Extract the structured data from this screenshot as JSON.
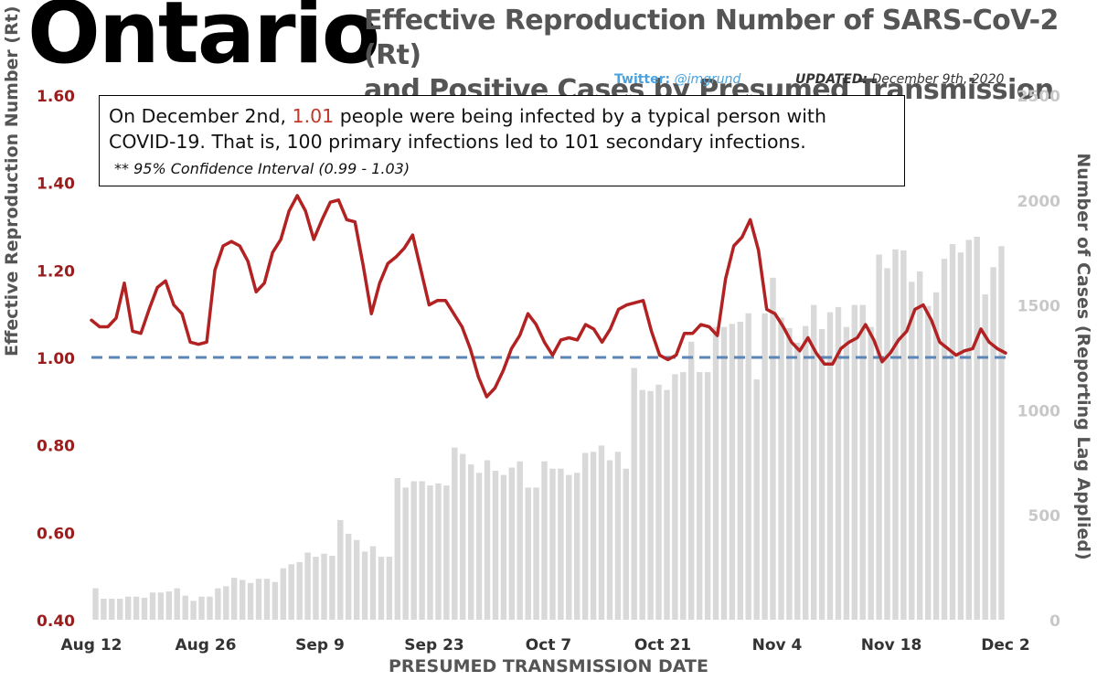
{
  "header": {
    "region": "Ontario",
    "title_line1": "Effective Reproduction Number of SARS-CoV-2 (Rt)",
    "title_line2": "and Positive Cases by Presumed Transmission Date",
    "twitter_label": "Twitter:",
    "twitter_handle": "@imgrund",
    "updated_label": "UPDATED:",
    "updated_date": "December 9th, 2020"
  },
  "annotation": {
    "text_before": "On December 2nd, ",
    "highlight": "1.01",
    "text_after": " people were being infected by a typical person with COVID-19. That is, 100 primary infections led to 101 secondary infections.",
    "ci": "** 95% Confidence Interval (0.99 - 1.03)"
  },
  "colors": {
    "rt_line": "#b22222",
    "reference_line": "#5b85b5",
    "bars": "#d9d9d9",
    "left_axis_text": "#9b1c1c",
    "right_axis_text": "#c8c8c8",
    "highlight": "#c0392b"
  },
  "chart_data": {
    "type": "bar+line",
    "xlabel": "PRESUMED TRANSMISSION DATE",
    "ylabel_left": "Effective Reproduction Number (Rt)",
    "ylabel_right": "Number of Cases (Reporting Lag Applied)",
    "ylim_left": [
      0.4,
      1.6
    ],
    "ylim_right": [
      0,
      2500
    ],
    "left_ticks": [
      "1.60",
      "1.40",
      "1.20",
      "1.00",
      "0.80",
      "0.60",
      "0.40"
    ],
    "right_ticks": [
      "2500",
      "2000",
      "1500",
      "1000",
      "500",
      "0"
    ],
    "x_ticks": [
      "Aug 12",
      "Aug 26",
      "Sep 9",
      "Sep 23",
      "Oct 7",
      "Oct 21",
      "Nov 4",
      "Nov 18",
      "Dec 2"
    ],
    "reference_line": 1.0,
    "series": [
      {
        "name": "Positive Cases",
        "kind": "bar",
        "values": [
          150,
          100,
          100,
          100,
          110,
          110,
          105,
          130,
          130,
          135,
          150,
          115,
          90,
          110,
          110,
          150,
          160,
          200,
          190,
          175,
          195,
          195,
          180,
          245,
          265,
          275,
          320,
          300,
          315,
          305,
          475,
          410,
          380,
          325,
          350,
          300,
          300,
          675,
          630,
          660,
          660,
          640,
          650,
          640,
          820,
          790,
          740,
          700,
          760,
          710,
          690,
          725,
          755,
          630,
          630,
          755,
          720,
          720,
          690,
          700,
          795,
          800,
          830,
          760,
          800,
          720,
          1200,
          1095,
          1090,
          1120,
          1095,
          1170,
          1180,
          1325,
          1180,
          1180,
          1395,
          1395,
          1410,
          1420,
          1460,
          1145,
          1460,
          1630,
          1440,
          1390,
          1320,
          1400,
          1500,
          1385,
          1465,
          1490,
          1395,
          1500,
          1500,
          1395,
          1740,
          1675,
          1765,
          1760,
          1610,
          1660,
          1495,
          1560,
          1720,
          1790,
          1750,
          1810,
          1825,
          1550,
          1680,
          1780
        ]
      },
      {
        "name": "Rt",
        "kind": "line",
        "values": [
          1.085,
          1.07,
          1.07,
          1.09,
          1.17,
          1.06,
          1.055,
          1.11,
          1.16,
          1.175,
          1.12,
          1.1,
          1.035,
          1.03,
          1.035,
          1.2,
          1.255,
          1.265,
          1.255,
          1.22,
          1.15,
          1.17,
          1.24,
          1.27,
          1.335,
          1.37,
          1.335,
          1.27,
          1.315,
          1.355,
          1.36,
          1.315,
          1.31,
          1.21,
          1.1,
          1.17,
          1.215,
          1.23,
          1.25,
          1.28,
          1.2,
          1.12,
          1.13,
          1.13,
          1.1,
          1.07,
          1.02,
          0.955,
          0.91,
          0.93,
          0.97,
          1.02,
          1.05,
          1.1,
          1.075,
          1.035,
          1.005,
          1.04,
          1.045,
          1.04,
          1.075,
          1.065,
          1.035,
          1.065,
          1.11,
          1.12,
          1.125,
          1.13,
          1.06,
          1.005,
          0.995,
          1.005,
          1.055,
          1.055,
          1.075,
          1.07,
          1.05,
          1.18,
          1.255,
          1.275,
          1.315,
          1.245,
          1.11,
          1.1,
          1.07,
          1.035,
          1.015,
          1.045,
          1.01,
          0.985,
          0.985,
          1.02,
          1.035,
          1.045,
          1.075,
          1.04,
          0.99,
          1.01,
          1.04,
          1.06,
          1.11,
          1.12,
          1.085,
          1.035,
          1.02,
          1.005,
          1.015,
          1.02,
          1.065,
          1.035,
          1.02,
          1.01
        ]
      }
    ]
  }
}
